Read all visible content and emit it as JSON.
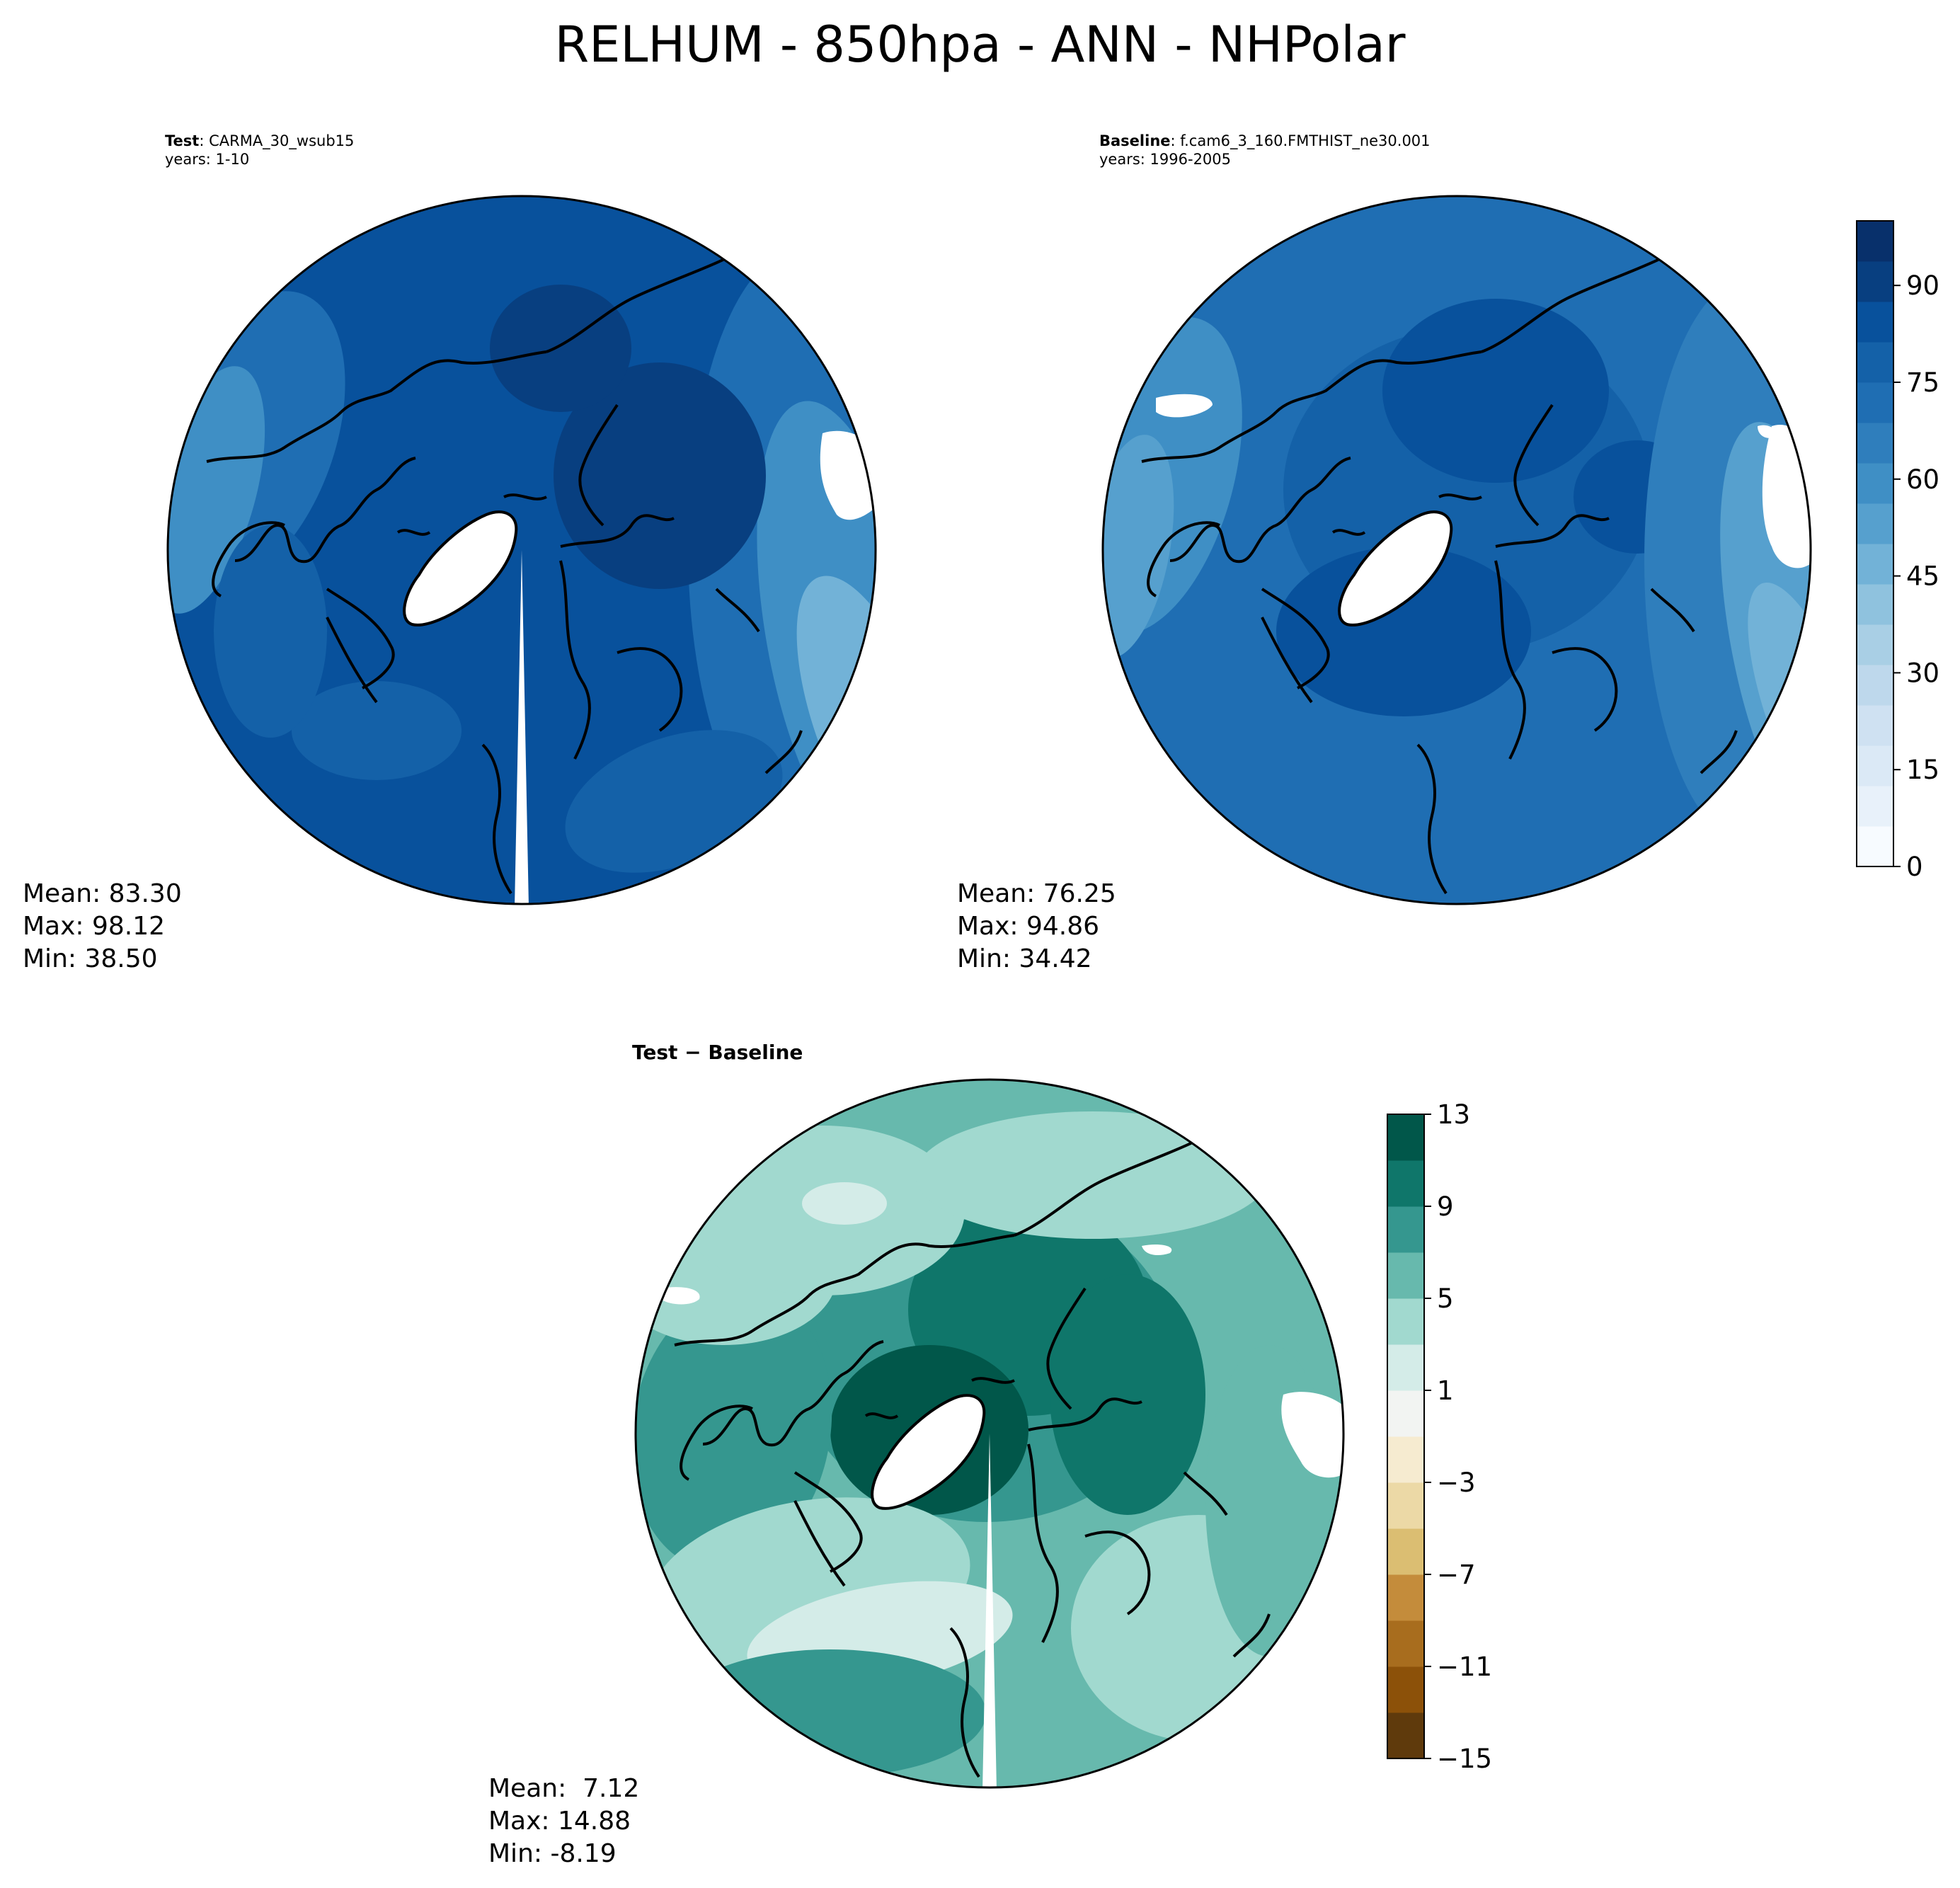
{
  "figure": {
    "title": "RELHUM - 850hpa - ANN - NHPolar"
  },
  "colors": {
    "blues_scale": [
      "#f7fbff",
      "#e8f1fa",
      "#dbe9f6",
      "#cfe1f2",
      "#bed8ec",
      "#a9cfe5",
      "#8fc2de",
      "#72b2d7",
      "#56a0ce",
      "#3f8fc5",
      "#2f7ebc",
      "#1f6eb3",
      "#1461a8",
      "#08519c",
      "#083f80",
      "#08306b"
    ],
    "brbg_scale": [
      "#5f3a0c",
      "#8c5109",
      "#a86d1e",
      "#c48c3b",
      "#dbbe72",
      "#ecd9a6",
      "#f6ebd0",
      "#f2f4f2",
      "#d4ece8",
      "#a1d9cf",
      "#67b9ad",
      "#35978f",
      "#0f766a",
      "#01574a"
    ],
    "coast": "#000000",
    "land_ice": "#ffffff"
  },
  "chart_data": [
    {
      "type": "heatmap",
      "projection": "north polar stereographic",
      "title_bold": "Test",
      "title_rest": ": CARMA_30_wsub15",
      "subtitle": "years: 1-10",
      "stats": {
        "mean": "83.30",
        "max": "98.12",
        "min": "38.50"
      },
      "stats_text": "Mean: 83.30\nMax: 98.12\nMin: 38.50",
      "field_note": "dominant values 75-95 over the polar cap, decreasing to ~45-60 toward the lower-right rim",
      "colorbar": "shared-blues"
    },
    {
      "type": "heatmap",
      "projection": "north polar stereographic",
      "title_bold": "Baseline",
      "title_rest": ": f.cam6_3_160.FMTHIST_ne30.001",
      "subtitle": "years: 1996-2005",
      "stats": {
        "mean": "76.25",
        "max": "94.86",
        "min": "34.42"
      },
      "stats_text": "Mean: 76.25\nMax: 94.86\nMin: 34.42",
      "colorbar": {
        "cmap": "Blues",
        "range": [
          0,
          100
        ],
        "levels": 16,
        "ticks": [
          0,
          15,
          30,
          45,
          60,
          75,
          90
        ],
        "tick_labels": [
          "0",
          "15",
          "30",
          "45",
          "60",
          "75",
          "90"
        ]
      }
    },
    {
      "type": "heatmap",
      "projection": "north polar stereographic",
      "title": "Test − Baseline",
      "stats": {
        "mean": "7.12",
        "max": "14.88",
        "min": "-8.19"
      },
      "stats_text": "Mean:  7.12\nMax: 14.88\nMin: -8.19",
      "colorbar": {
        "cmap": "BrBG",
        "range": [
          -15,
          13
        ],
        "levels": 14,
        "ticks": [
          -15,
          -11,
          -7,
          -3,
          1,
          5,
          9,
          13
        ],
        "tick_labels": [
          "−15",
          "−11",
          "−7",
          "−3",
          "1",
          "5",
          "9",
          "13"
        ]
      }
    }
  ]
}
